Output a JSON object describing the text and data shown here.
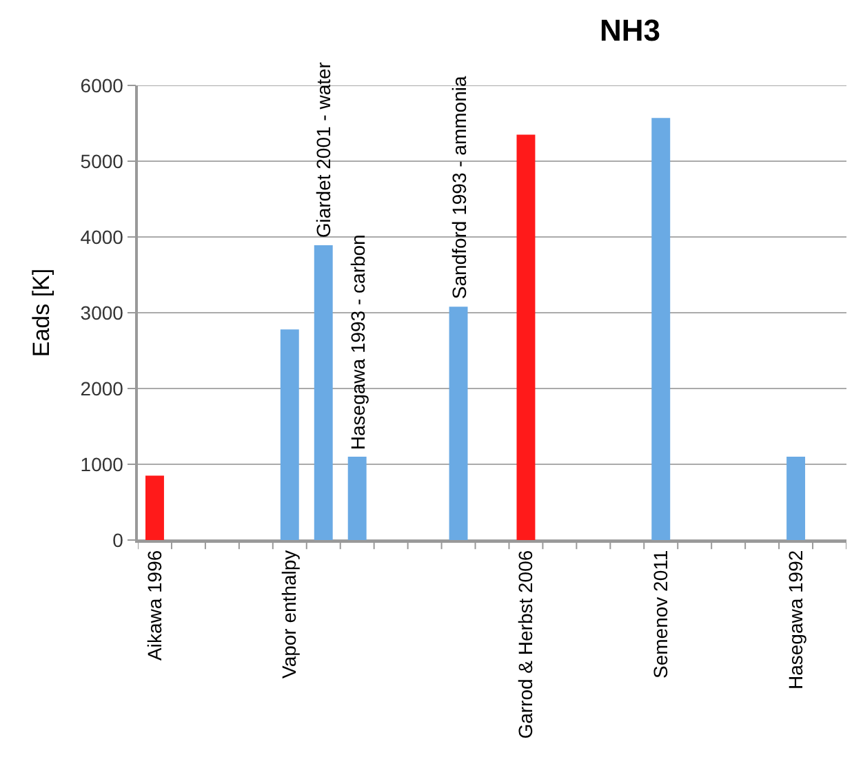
{
  "chart_data": {
    "type": "bar",
    "title": "NH3",
    "ylabel": "Eads [K]",
    "categories": [
      "Aikawa 1996",
      null,
      null,
      null,
      "Vapor enthalpy",
      null,
      null,
      null,
      null,
      null,
      null,
      "Garrod & Herbst 2006",
      null,
      null,
      null,
      "Semenov 2011",
      null,
      null,
      null,
      "Hasegawa 1992",
      null
    ],
    "values": [
      850,
      null,
      null,
      null,
      2780,
      3890,
      1100,
      null,
      null,
      3080,
      null,
      5350,
      null,
      null,
      null,
      5570,
      null,
      null,
      null,
      1100,
      null
    ],
    "colors": [
      "#ff1a1a",
      null,
      null,
      null,
      "#6aaae4",
      "#6aaae4",
      "#6aaae4",
      null,
      null,
      "#6aaae4",
      null,
      "#ff1a1a",
      null,
      null,
      null,
      "#6aaae4",
      null,
      null,
      null,
      "#6aaae4",
      null
    ],
    "value_labels": [
      null,
      null,
      null,
      null,
      null,
      "Giardet 2001 - water",
      "Hasegawa 1993 - carbon",
      null,
      null,
      "Sandford 1993 - ammonia",
      null,
      null,
      null,
      null,
      null,
      null,
      null,
      null,
      null,
      null,
      null
    ],
    "ylim": [
      0,
      6000
    ],
    "yticks": [
      0,
      1000,
      2000,
      3000,
      4000,
      5000,
      6000
    ],
    "grid": "y"
  }
}
